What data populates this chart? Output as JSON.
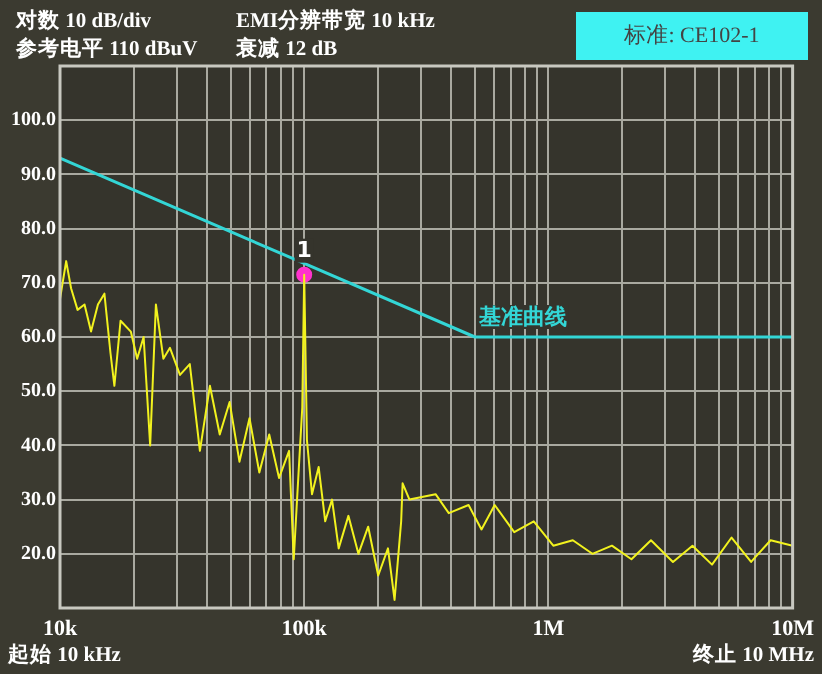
{
  "chart_data": {
    "type": "line",
    "xlabel": null,
    "log": "x",
    "grid": true,
    "legend": false,
    "marker": "none",
    "line_style": "solid",
    "xlim": [
      10000,
      10000000
    ],
    "xticks": [
      {
        "value": 10000,
        "label": "10k"
      },
      {
        "value": 20000,
        "label": null
      },
      {
        "value": 30000,
        "label": null
      },
      {
        "value": 40000,
        "label": null
      },
      {
        "value": 50000,
        "label": null
      },
      {
        "value": 60000,
        "label": null
      },
      {
        "value": 70000,
        "label": null
      },
      {
        "value": 80000,
        "label": null
      },
      {
        "value": 90000,
        "label": null
      },
      {
        "value": 100000,
        "label": "100k"
      },
      {
        "value": 200000,
        "label": null
      },
      {
        "value": 300000,
        "label": null
      },
      {
        "value": 400000,
        "label": null
      },
      {
        "value": 500000,
        "label": null
      },
      {
        "value": 600000,
        "label": null
      },
      {
        "value": 700000,
        "label": null
      },
      {
        "value": 800000,
        "label": null
      },
      {
        "value": 900000,
        "label": null
      },
      {
        "value": 1000000,
        "label": "1M"
      },
      {
        "value": 2000000,
        "label": null
      },
      {
        "value": 3000000,
        "label": null
      },
      {
        "value": 4000000,
        "label": null
      },
      {
        "value": 5000000,
        "label": null
      },
      {
        "value": 6000000,
        "label": null
      },
      {
        "value": 7000000,
        "label": null
      },
      {
        "value": 8000000,
        "label": null
      },
      {
        "value": 9000000,
        "label": null
      },
      {
        "value": 10000000,
        "label": "10M"
      }
    ],
    "ylim": [
      10,
      110
    ],
    "yticks": [
      {
        "value": 20,
        "label": "20.0"
      },
      {
        "value": 30,
        "label": "30.0"
      },
      {
        "value": 40,
        "label": "40.0"
      },
      {
        "value": 50,
        "label": "50.0"
      },
      {
        "value": 60,
        "label": "60.0"
      },
      {
        "value": 70,
        "label": "70.0"
      },
      {
        "value": 80,
        "label": "80.0"
      },
      {
        "value": 90,
        "label": "90.0"
      },
      {
        "value": 100,
        "label": "100.0"
      }
    ],
    "series": [
      {
        "color": "#33d6d6",
        "x": [
          10000,
          500000,
          10000000
        ],
        "values": [
          93,
          60,
          60
        ]
      },
      {
        "color": "#f2f21e",
        "x": [
          10000,
          10600,
          11100,
          11800,
          12600,
          13400,
          14300,
          15200,
          16100,
          16700,
          17700,
          19500,
          20700,
          22000,
          23400,
          24700,
          26500,
          28200,
          31000,
          34000,
          37400,
          41100,
          45100,
          49500,
          54300,
          59700,
          65500,
          71900,
          78900,
          86700,
          90600,
          95100,
          98200,
          100000,
          102600,
          107600,
          114600,
          121900,
          130000,
          138400,
          151700,
          166700,
          182800,
          200900,
          220300,
          234400,
          249500,
          252900,
          269800,
          345100,
          390800,
          471000,
          532100,
          602600,
          724400,
          871000,
          1047000,
          1259000,
          1514000,
          1820000,
          2188000,
          2630000,
          3236000,
          3890000,
          4677000,
          5623000,
          6761000,
          8128000,
          10000000
        ],
        "values": [
          67,
          74,
          69,
          65,
          66,
          61,
          66,
          68,
          57,
          51,
          63,
          61,
          56,
          60,
          40,
          66,
          56,
          58,
          53,
          55,
          39,
          51,
          42,
          48,
          37,
          45,
          35,
          42,
          34,
          39,
          19,
          36,
          47,
          71.5,
          41,
          31,
          36,
          26,
          30,
          21,
          27,
          20,
          25,
          16,
          21,
          11.5,
          26,
          33,
          30,
          31,
          27.5,
          29,
          24.5,
          29,
          24,
          26,
          21.5,
          22.5,
          20,
          21.5,
          19,
          22.5,
          18.5,
          21.5,
          18,
          23,
          18.5,
          22.5,
          21.5
        ]
      },
      {
        "type": "scatter",
        "marker": "circle",
        "color": "#ff33cc",
        "x": [
          100000
        ],
        "values": [
          71.5
        ]
      }
    ],
    "annotations": [
      "对数 10 dB/div",
      "EMI分辨带宽 10 kHz",
      "参考电平 110 dBuV",
      "衰减 12 dB",
      "标准: CE102-1",
      "起始 10 kHz",
      "终止 10 MHz",
      {
        "text": "基准曲线",
        "x": 500000,
        "y": 60
      },
      {
        "text": "1",
        "x": 100000,
        "y": 71.5
      }
    ]
  }
}
